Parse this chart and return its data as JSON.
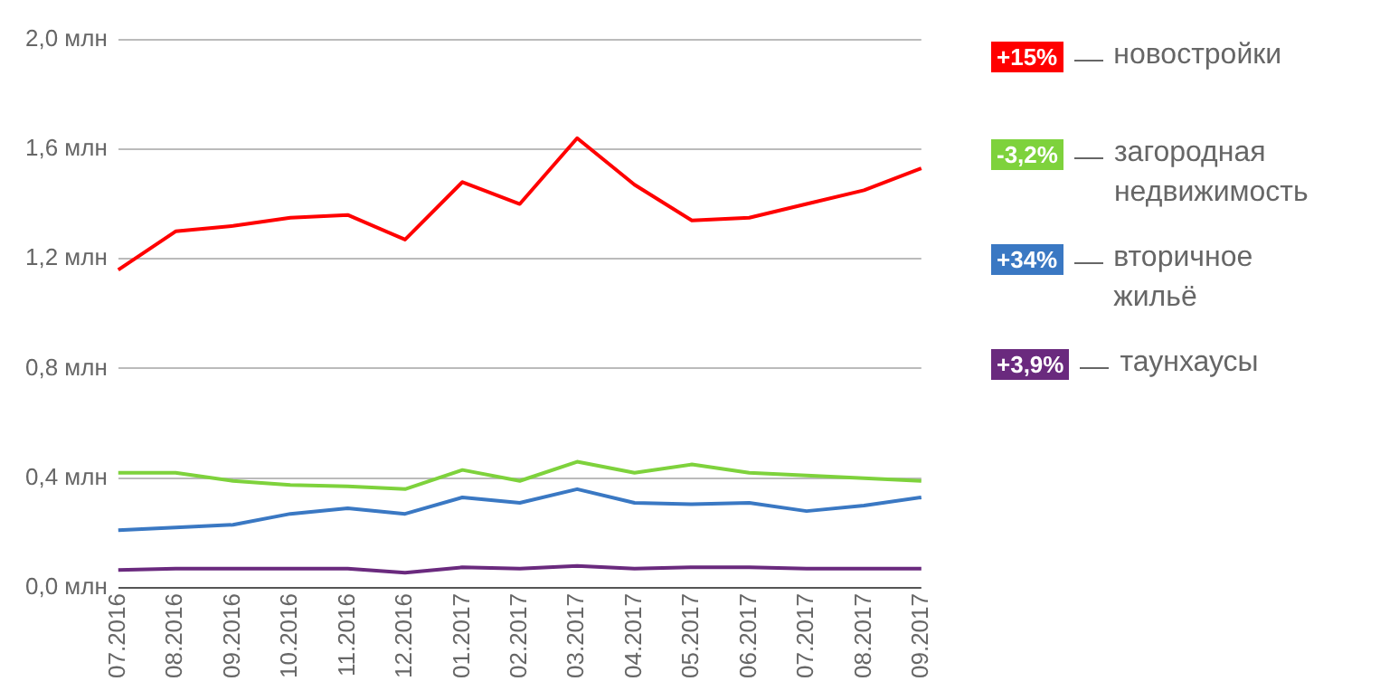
{
  "chart_data": {
    "type": "line",
    "categories": [
      "07.2016",
      "08.2016",
      "09.2016",
      "10.2016",
      "11.2016",
      "12.2016",
      "01.2017",
      "02.2017",
      "03.2017",
      "04.2017",
      "05.2017",
      "06.2017",
      "07.2017",
      "08.2017",
      "09.2017"
    ],
    "series": [
      {
        "name": "новостройки",
        "color": "#ff0000",
        "values": [
          1.16,
          1.3,
          1.32,
          1.35,
          1.36,
          1.27,
          1.48,
          1.4,
          1.64,
          1.47,
          1.34,
          1.35,
          1.4,
          1.45,
          1.53
        ]
      },
      {
        "name": "загородная недвижимость",
        "color": "#7ed23c",
        "values": [
          0.42,
          0.42,
          0.39,
          0.375,
          0.37,
          0.36,
          0.43,
          0.39,
          0.46,
          0.42,
          0.45,
          0.42,
          0.41,
          0.4,
          0.39
        ]
      },
      {
        "name": "вторичное жильё",
        "color": "#3a78c3",
        "values": [
          0.21,
          0.22,
          0.23,
          0.27,
          0.29,
          0.27,
          0.33,
          0.31,
          0.36,
          0.31,
          0.305,
          0.31,
          0.28,
          0.3,
          0.33
        ]
      },
      {
        "name": "таунхаусы",
        "color": "#6a2a7e",
        "values": [
          0.065,
          0.07,
          0.07,
          0.07,
          0.07,
          0.055,
          0.075,
          0.07,
          0.08,
          0.07,
          0.075,
          0.075,
          0.07,
          0.07,
          0.07
        ]
      }
    ],
    "annotations": [
      "+15%",
      "-3,2%",
      "+34%",
      "+3,9%"
    ],
    "ylim": [
      0,
      2
    ],
    "yticks": [
      {
        "value": 0,
        "label": "0,0 млн"
      },
      {
        "value": 0.4,
        "label": "0,4 млн"
      },
      {
        "value": 0.8,
        "label": "0,8 млн"
      },
      {
        "value": 1.2,
        "label": "1,2 млн"
      },
      {
        "value": 1.6,
        "label": "1,6 млн"
      },
      {
        "value": 2,
        "label": "2,0 млн"
      }
    ],
    "grid": "y",
    "legend": "right",
    "marker": "none",
    "line_style": "solid"
  }
}
